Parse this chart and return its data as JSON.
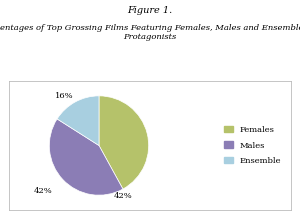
{
  "title": "Figure 1.",
  "subtitle": "Percentages of Top Grossing Films Featuring Females, Males and Ensembles as\nProtagonists",
  "labels": [
    "Females",
    "Males",
    "Ensemble"
  ],
  "values": [
    42,
    42,
    16
  ],
  "colors": [
    "#b5c26a",
    "#8b7db5",
    "#a8cfe0"
  ],
  "startangle": 90,
  "background_color": "#ffffff",
  "title_fontsize": 7,
  "subtitle_fontsize": 6,
  "legend_fontsize": 6,
  "pct_fontsize": 6
}
